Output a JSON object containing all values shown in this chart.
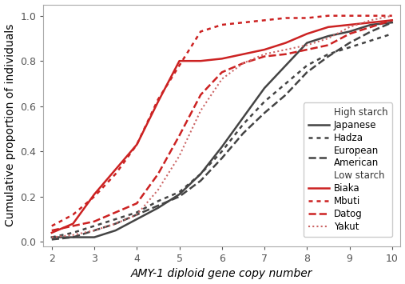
{
  "x_ticks": [
    2,
    3,
    4,
    5,
    6,
    7,
    8,
    9,
    10
  ],
  "xlim": [
    1.8,
    10.2
  ],
  "ylim": [
    -0.02,
    1.05
  ],
  "xlabel": "AMY-1 diploid gene copy number",
  "ylabel": "Cumulative proportion of individuals",
  "background_color": "#ffffff",
  "series": {
    "Japanese": {
      "x": [
        2,
        2.5,
        3,
        3.5,
        4,
        4.5,
        5,
        5.5,
        6,
        6.5,
        7,
        7.5,
        8,
        8.5,
        9,
        9.5,
        10
      ],
      "y": [
        0.02,
        0.02,
        0.02,
        0.05,
        0.1,
        0.15,
        0.21,
        0.3,
        0.42,
        0.55,
        0.68,
        0.78,
        0.88,
        0.91,
        0.93,
        0.96,
        0.97
      ],
      "color": "#444444",
      "linestyle": "solid",
      "linewidth": 1.8,
      "group": "High starch"
    },
    "Hadza": {
      "x": [
        2,
        2.5,
        3,
        3.5,
        4,
        4.5,
        5,
        5.5,
        6,
        6.5,
        7,
        7.5,
        8,
        8.5,
        9,
        9.5,
        10
      ],
      "y": [
        0.02,
        0.04,
        0.07,
        0.1,
        0.13,
        0.18,
        0.22,
        0.3,
        0.4,
        0.52,
        0.62,
        0.7,
        0.78,
        0.83,
        0.86,
        0.89,
        0.92
      ],
      "color": "#444444",
      "linestyle": "dotted",
      "linewidth": 1.8,
      "group": "High starch"
    },
    "European American": {
      "x": [
        2,
        2.5,
        3,
        3.5,
        4,
        4.5,
        5,
        5.5,
        6,
        6.5,
        7,
        7.5,
        8,
        8.5,
        9,
        9.5,
        10
      ],
      "y": [
        0.01,
        0.02,
        0.05,
        0.08,
        0.12,
        0.16,
        0.2,
        0.27,
        0.37,
        0.48,
        0.57,
        0.65,
        0.75,
        0.82,
        0.88,
        0.93,
        0.97
      ],
      "color": "#444444",
      "linestyle": "dashed",
      "linewidth": 1.8,
      "group": "High starch"
    },
    "Biaka": {
      "x": [
        2,
        2.5,
        3,
        3.5,
        4,
        4.5,
        5,
        5.5,
        6,
        6.5,
        7,
        7.5,
        8,
        8.5,
        9,
        9.5,
        10
      ],
      "y": [
        0.04,
        0.08,
        0.21,
        0.32,
        0.43,
        0.62,
        0.8,
        0.8,
        0.81,
        0.83,
        0.85,
        0.88,
        0.92,
        0.95,
        0.96,
        0.97,
        0.98
      ],
      "color": "#cc2222",
      "linestyle": "solid",
      "linewidth": 1.8,
      "group": "Low starch"
    },
    "Mbuti": {
      "x": [
        2,
        2.5,
        3,
        3.5,
        4,
        4.5,
        5,
        5.5,
        6,
        6.5,
        7,
        7.5,
        8,
        8.5,
        9,
        9.5,
        10
      ],
      "y": [
        0.07,
        0.12,
        0.2,
        0.3,
        0.43,
        0.63,
        0.78,
        0.93,
        0.96,
        0.97,
        0.98,
        0.99,
        0.99,
        1.0,
        1.0,
        1.0,
        1.0
      ],
      "color": "#cc2222",
      "linestyle": "dotted",
      "linewidth": 1.8,
      "group": "Low starch"
    },
    "Datog": {
      "x": [
        2,
        2.5,
        3,
        3.5,
        4,
        4.5,
        5,
        5.5,
        6,
        6.5,
        7,
        7.5,
        8,
        8.5,
        9,
        9.5,
        10
      ],
      "y": [
        0.05,
        0.07,
        0.09,
        0.13,
        0.17,
        0.3,
        0.47,
        0.65,
        0.75,
        0.79,
        0.82,
        0.83,
        0.85,
        0.87,
        0.92,
        0.95,
        0.98
      ],
      "color": "#cc2222",
      "linestyle": "dashed",
      "linewidth": 1.8,
      "group": "Low starch"
    },
    "Yakut": {
      "x": [
        2,
        2.5,
        3,
        3.5,
        4,
        4.5,
        5,
        5.5,
        6,
        6.5,
        7,
        7.5,
        8,
        8.5,
        9,
        9.5,
        10
      ],
      "y": [
        0.02,
        0.03,
        0.05,
        0.08,
        0.12,
        0.23,
        0.38,
        0.58,
        0.72,
        0.79,
        0.83,
        0.85,
        0.87,
        0.9,
        0.95,
        0.98,
        1.0
      ],
      "color": "#cc6666",
      "linestyle": "dotted",
      "linewidth": 1.5,
      "group": "Low starch"
    }
  },
  "legend_fontsize": 8.5,
  "tick_fontsize": 9,
  "axis_label_fontsize": 10
}
